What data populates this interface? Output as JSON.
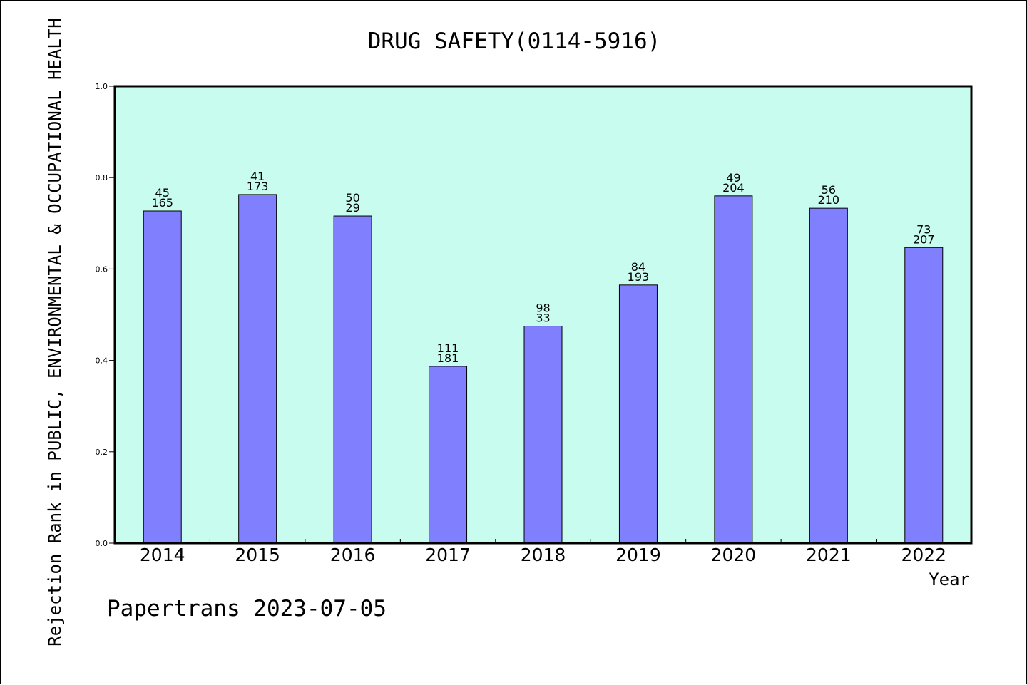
{
  "colors": {
    "plot_background": "#c8fcef",
    "bar_fill": "#8080ff",
    "bar_stroke": "#000000",
    "axis": "#000000"
  },
  "footer": "Papertrans 2023-07-05",
  "chart_data": {
    "type": "bar",
    "title": "DRUG SAFETY(0114-5916)",
    "xlabel": "Year",
    "ylabel": "Rejection Rank in PUBLIC, ENVIRONMENTAL & OCCUPATIONAL HEALTH",
    "ylim": [
      0,
      1.0
    ],
    "yticks": [
      "0.0",
      "0.2",
      "0.4",
      "0.6",
      "0.8",
      "1.0"
    ],
    "grid": false,
    "legend": "none",
    "categories": [
      "2014",
      "2015",
      "2016",
      "2017",
      "2018",
      "2019",
      "2020",
      "2021",
      "2022"
    ],
    "values": [
      0.727,
      0.763,
      0.716,
      0.387,
      0.475,
      0.565,
      0.76,
      0.733,
      0.647
    ],
    "labels_top": [
      "45",
      "41",
      "50",
      "111",
      "98",
      "84",
      "49",
      "56",
      "73"
    ],
    "labels_bottom": [
      "165",
      "173",
      "29",
      "181",
      "33",
      "193",
      "204",
      "210",
      "207"
    ]
  }
}
